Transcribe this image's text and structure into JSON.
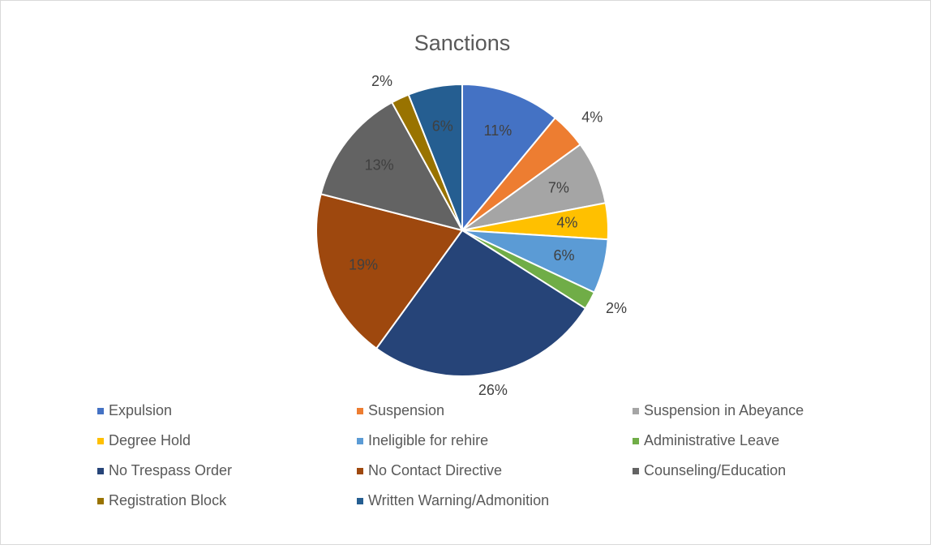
{
  "chart_data": {
    "type": "pie",
    "title": "Sanctions",
    "categories": [
      "Expulsion",
      "Suspension",
      "Suspension in Abeyance",
      "Degree Hold",
      "Ineligible for rehire",
      "Administrative Leave",
      "No Trespass Order",
      "No Contact Directive",
      "Counseling/Education",
      "Registration Block",
      "Written Warning/Admonition"
    ],
    "values": [
      11,
      4,
      7,
      4,
      6,
      2,
      26,
      19,
      13,
      2,
      6
    ],
    "value_labels": [
      "11%",
      "4%",
      "7%",
      "4%",
      "6%",
      "2%",
      "26%",
      "19%",
      "13%",
      "2%",
      "6%"
    ],
    "label_positions": [
      "inside",
      "outside",
      "inside",
      "inside",
      "inside",
      "outside",
      "outside",
      "inside",
      "inside",
      "outside",
      "inside"
    ],
    "colors": [
      "#4472c4",
      "#ed7d31",
      "#a5a5a5",
      "#ffc000",
      "#5b9bd5",
      "#70ad47",
      "#264478",
      "#9e480e",
      "#636363",
      "#997300",
      "#255e91"
    ],
    "legend": "bottom"
  }
}
